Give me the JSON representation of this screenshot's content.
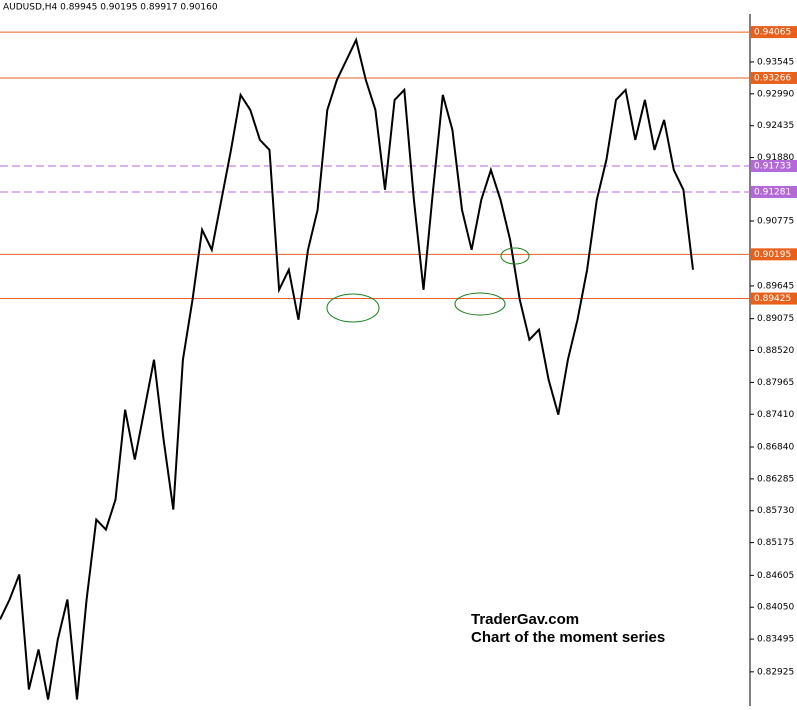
{
  "chart_data": {
    "type": "line",
    "title": "AUDUSD,H4  0.89945 0.90195 0.89917 0.90160",
    "annotations": [
      "TraderGav.com",
      "Chart of the moment series"
    ],
    "color": "#000000",
    "values": [
      0.83836,
      0.84184,
      0.84619,
      0.82618,
      0.83314,
      0.82444,
      0.83488,
      0.84184,
      0.82444,
      0.84184,
      0.85576,
      0.85402,
      0.85924,
      0.8749,
      0.8662,
      0.8749,
      0.8836,
      0.86968,
      0.8575,
      0.8836,
      0.89404,
      0.90622,
      0.90274,
      0.91144,
      0.92014,
      0.92971,
      0.9271,
      0.92188,
      0.92014,
      0.89578,
      0.89926,
      0.89056,
      0.90274,
      0.9097,
      0.9271,
      0.93232,
      0.9358,
      0.93928,
      0.93232,
      0.9271,
      0.91318,
      0.92884,
      0.93058,
      0.91144,
      0.89578,
      0.91318,
      0.92971,
      0.92362,
      0.9097,
      0.90274,
      0.91144,
      0.91666,
      0.91144,
      0.90448,
      0.89404,
      0.88708,
      0.88882,
      0.88012,
      0.87403,
      0.8836,
      0.89056,
      0.89926,
      0.91144,
      0.9184,
      0.92884,
      0.93058,
      0.92188,
      0.92884,
      0.92014,
      0.92536,
      0.91666,
      0.91318,
      0.89926
    ],
    "ylim": [
      0.8233,
      0.9438
    ],
    "yticks": [
      {
        "value": 0.93545,
        "label": "0.93545"
      },
      {
        "value": 0.9299,
        "label": "0.92990"
      },
      {
        "value": 0.92435,
        "label": "0.92435"
      },
      {
        "value": 0.9188,
        "label": "0.91880"
      },
      {
        "value": 0.90775,
        "label": "0.90775"
      },
      {
        "value": 0.89645,
        "label": "0.89645"
      },
      {
        "value": 0.89075,
        "label": "0.89075"
      },
      {
        "value": 0.8852,
        "label": "0.88520"
      },
      {
        "value": 0.87965,
        "label": "0.87965"
      },
      {
        "value": 0.8741,
        "label": "0.87410"
      },
      {
        "value": 0.8684,
        "label": "0.86840"
      },
      {
        "value": 0.86285,
        "label": "0.86285"
      },
      {
        "value": 0.8573,
        "label": "0.85730"
      },
      {
        "value": 0.85175,
        "label": "0.85175"
      },
      {
        "value": 0.84605,
        "label": "0.84605"
      },
      {
        "value": 0.8405,
        "label": "0.84050"
      },
      {
        "value": 0.83495,
        "label": "0.83495"
      },
      {
        "value": 0.82925,
        "label": "0.82925"
      }
    ],
    "levels": [
      {
        "value": 0.94065,
        "color": "#e8601c",
        "dashed": false
      },
      {
        "value": 0.93266,
        "color": "#e8601c",
        "dashed": false
      },
      {
        "value": 0.91733,
        "color": "#b36ad8",
        "dashed": true
      },
      {
        "value": 0.91281,
        "color": "#b36ad8",
        "dashed": true
      },
      {
        "value": 0.90195,
        "color": "#e8601c",
        "dashed": false
      },
      {
        "value": 0.89425,
        "color": "#e8601c",
        "dashed": false
      }
    ]
  }
}
